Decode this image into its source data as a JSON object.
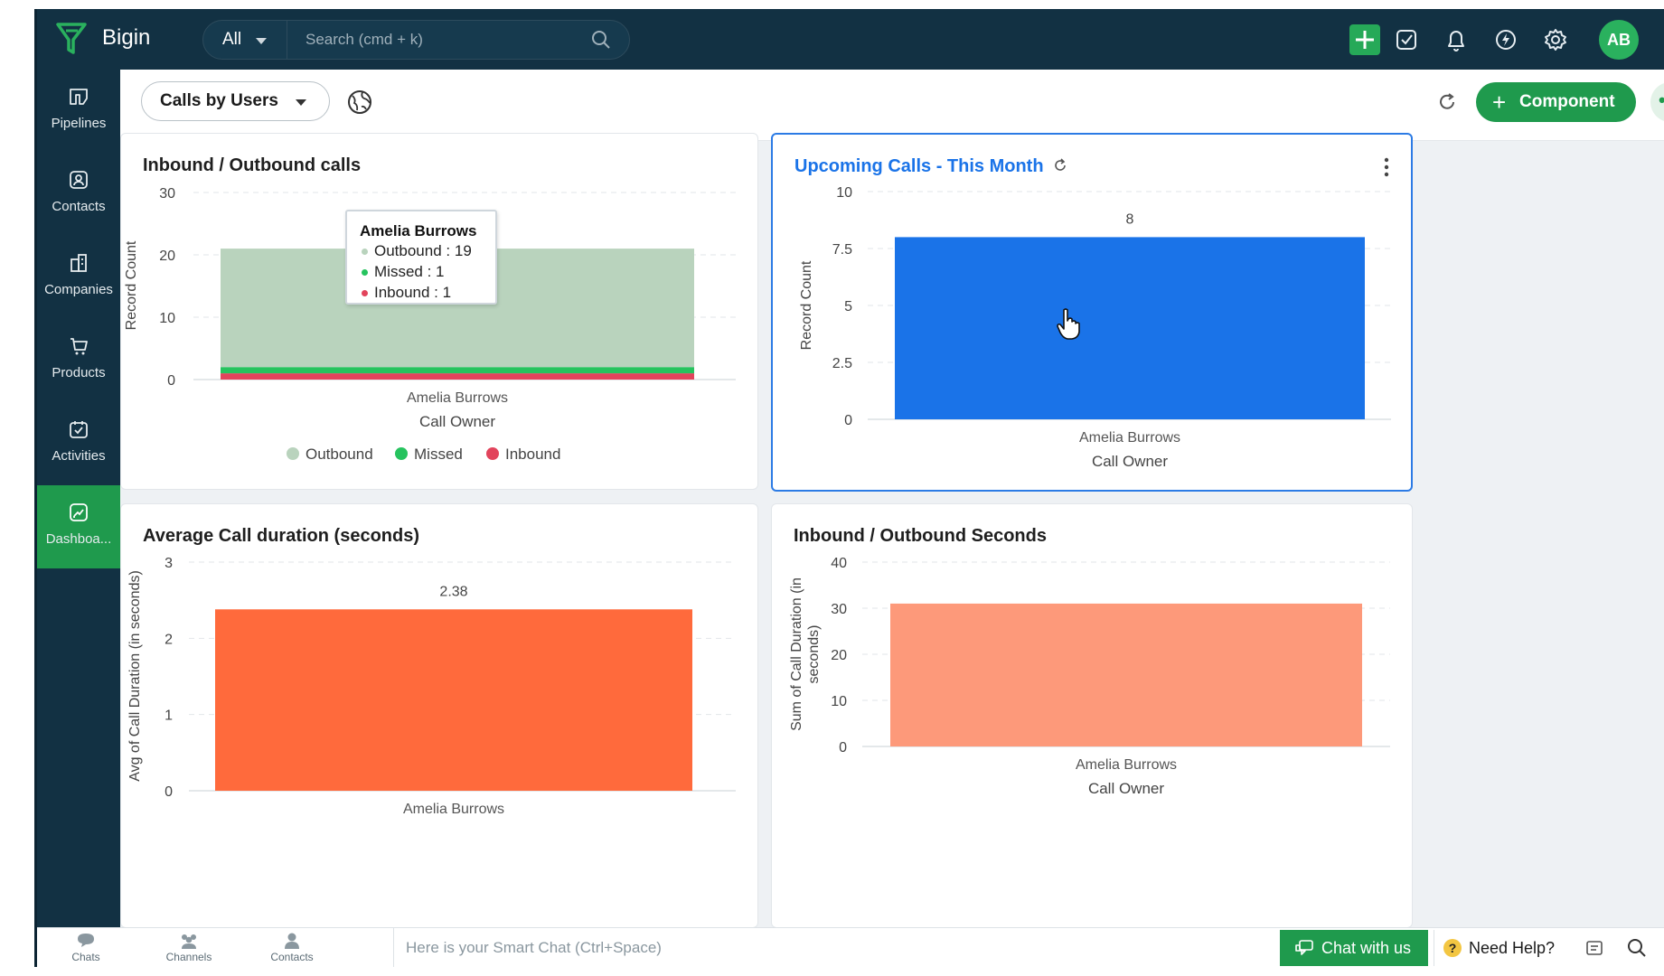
{
  "app": {
    "brand": "Bigin",
    "accent": "#1f9a4d",
    "topbar_color": "#123143"
  },
  "search": {
    "scope": "All",
    "placeholder": "Search (cmd + k)"
  },
  "topbar_icons": [
    "add-icon",
    "task-check-icon",
    "bell-icon",
    "lightning-icon",
    "gear-icon"
  ],
  "user": {
    "initials": "AB"
  },
  "sidebar": {
    "items": [
      {
        "label": "Pipelines",
        "icon": "pipelines-icon"
      },
      {
        "label": "Contacts",
        "icon": "contacts-icon"
      },
      {
        "label": "Companies",
        "icon": "companies-icon"
      },
      {
        "label": "Products",
        "icon": "products-icon"
      },
      {
        "label": "Activities",
        "icon": "activities-icon"
      },
      {
        "label": "Dashboa...",
        "icon": "dashboard-icon",
        "active": true
      }
    ]
  },
  "header": {
    "dashboard_name": "Calls by Users",
    "component_label": "Component"
  },
  "cards": {
    "inbound_outbound": {
      "title": "Inbound / Outbound calls"
    },
    "upcoming": {
      "title": "Upcoming Calls - This Month"
    },
    "avg_duration": {
      "title": "Average Call duration (seconds)"
    },
    "io_seconds": {
      "title": "Inbound / Outbound Seconds"
    }
  },
  "tooltip": {
    "title": "Amelia Burrows",
    "rows": [
      {
        "label": "Outbound",
        "value": "19",
        "color": "#b9d3bd"
      },
      {
        "label": "Missed",
        "value": "1",
        "color": "#26c35e"
      },
      {
        "label": "Inbound",
        "value": "1",
        "color": "#e2445c"
      }
    ]
  },
  "chart_data": [
    {
      "type": "bar",
      "title": "Inbound / Outbound calls",
      "stacked": true,
      "categories": [
        "Amelia Burrows"
      ],
      "series": [
        {
          "name": "Inbound",
          "values": [
            1
          ],
          "color": "#e2445c"
        },
        {
          "name": "Missed",
          "values": [
            1
          ],
          "color": "#26c35e"
        },
        {
          "name": "Outbound",
          "values": [
            19
          ],
          "color": "#b9d3bd"
        }
      ],
      "xlabel": "Call Owner",
      "ylabel": "Record Count",
      "ylim": [
        0,
        30
      ],
      "yticks": [
        0,
        10,
        20,
        30
      ],
      "legend": "bottom",
      "grid": true
    },
    {
      "type": "bar",
      "title": "Upcoming Calls - This Month",
      "categories": [
        "Amelia Burrows"
      ],
      "values": [
        8
      ],
      "data_labels": [
        "8"
      ],
      "color": "#1a73e8",
      "xlabel": "Call Owner",
      "ylabel": "Record Count",
      "ylim": [
        0,
        10
      ],
      "yticks": [
        "0",
        "2.5",
        "5",
        "7.5",
        "10"
      ],
      "grid": true
    },
    {
      "type": "bar",
      "title": "Average Call duration (seconds)",
      "categories": [
        "Amelia Burrows"
      ],
      "values": [
        2.38
      ],
      "data_labels": [
        "2.38"
      ],
      "color": "#ff6a3c",
      "xlabel": "",
      "ylabel": "Avg of Call Duration (in seconds)",
      "ylim": [
        0,
        3
      ],
      "yticks": [
        0,
        1,
        2,
        3
      ],
      "grid": true
    },
    {
      "type": "bar",
      "title": "Inbound / Outbound Seconds",
      "categories": [
        "Amelia Burrows"
      ],
      "values": [
        31
      ],
      "color": "#fd997a",
      "xlabel": "Call Owner",
      "ylabel": "Sum of Call Duration (in seconds)",
      "ylabel_lines": [
        "Sum of Call Duration (in",
        "seconds)"
      ],
      "ylim": [
        0,
        40
      ],
      "yticks": [
        0,
        10,
        20,
        30,
        40
      ],
      "grid": true
    }
  ],
  "bottombar": {
    "items": [
      {
        "label": "Chats",
        "icon": "chats-icon"
      },
      {
        "label": "Channels",
        "icon": "channels-icon"
      },
      {
        "label": "Contacts",
        "icon": "contacts-icon"
      }
    ],
    "smart_chat_placeholder": "Here is your Smart Chat (Ctrl+Space)",
    "chat_with_us": "Chat with us",
    "need_help": "Need Help?"
  }
}
